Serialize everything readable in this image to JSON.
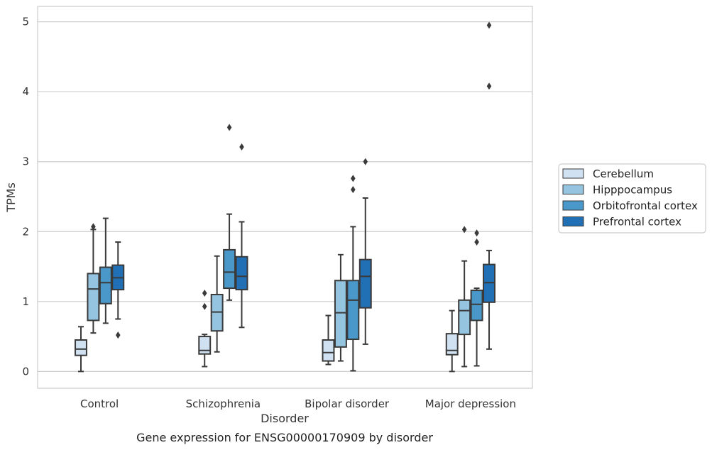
{
  "caption": "Gene expression for ENSG00000170909 by disorder",
  "chart_data": {
    "type": "boxplot",
    "xlabel": "Disorder",
    "ylabel": "TPMs",
    "ylim": [
      -0.24,
      5.22
    ],
    "yticks": [
      0,
      1,
      2,
      3,
      4,
      5
    ],
    "grid": "horizontal",
    "legend_position": "right",
    "categories": [
      "Control",
      "Schizophrenia",
      "Bipolar disorder",
      "Major depression"
    ],
    "series": [
      {
        "name": "Cerebellum",
        "color": "#d0e1f2",
        "boxes": [
          {
            "whislo": 0.0,
            "q1": 0.23,
            "med": 0.32,
            "q3": 0.45,
            "whishi": 0.64,
            "fliers": []
          },
          {
            "whislo": 0.07,
            "q1": 0.25,
            "med": 0.3,
            "q3": 0.5,
            "whishi": 0.53,
            "fliers": [
              0.93,
              1.12
            ]
          },
          {
            "whislo": 0.1,
            "q1": 0.15,
            "med": 0.27,
            "q3": 0.45,
            "whishi": 0.8,
            "fliers": []
          },
          {
            "whislo": 0.0,
            "q1": 0.24,
            "med": 0.3,
            "q3": 0.54,
            "whishi": 0.87,
            "fliers": []
          }
        ]
      },
      {
        "name": "Hipppocampus",
        "color": "#94c4df",
        "boxes": [
          {
            "whislo": 0.55,
            "q1": 0.73,
            "med": 1.18,
            "q3": 1.4,
            "whishi": 2.03,
            "fliers": [
              2.07
            ]
          },
          {
            "whislo": 0.28,
            "q1": 0.58,
            "med": 0.85,
            "q3": 1.1,
            "whishi": 1.65,
            "fliers": []
          },
          {
            "whislo": 0.15,
            "q1": 0.35,
            "med": 0.84,
            "q3": 1.3,
            "whishi": 1.67,
            "fliers": []
          },
          {
            "whislo": 0.07,
            "q1": 0.53,
            "med": 0.87,
            "q3": 1.02,
            "whishi": 1.58,
            "fliers": [
              2.03
            ]
          }
        ]
      },
      {
        "name": "Orbitofrontal cortex",
        "color": "#4a98c9",
        "boxes": [
          {
            "whislo": 0.69,
            "q1": 0.97,
            "med": 1.27,
            "q3": 1.49,
            "whishi": 2.19,
            "fliers": []
          },
          {
            "whislo": 1.02,
            "q1": 1.19,
            "med": 1.42,
            "q3": 1.74,
            "whishi": 2.25,
            "fliers": [
              3.49
            ]
          },
          {
            "whislo": 0.01,
            "q1": 0.46,
            "med": 1.02,
            "q3": 1.3,
            "whishi": 2.07,
            "fliers": [
              2.6,
              2.76
            ]
          },
          {
            "whislo": 0.08,
            "q1": 0.73,
            "med": 0.96,
            "q3": 1.16,
            "whishi": 1.19,
            "fliers": [
              1.85,
              1.98
            ]
          }
        ]
      },
      {
        "name": "Prefrontal cortex",
        "color": "#2170b5",
        "boxes": [
          {
            "whislo": 0.75,
            "q1": 1.17,
            "med": 1.34,
            "q3": 1.52,
            "whishi": 1.85,
            "fliers": [
              0.52
            ]
          },
          {
            "whislo": 0.63,
            "q1": 1.17,
            "med": 1.36,
            "q3": 1.64,
            "whishi": 2.14,
            "fliers": [
              3.21
            ]
          },
          {
            "whislo": 0.39,
            "q1": 0.91,
            "med": 1.36,
            "q3": 1.6,
            "whishi": 2.48,
            "fliers": [
              3.0
            ]
          },
          {
            "whislo": 0.32,
            "q1": 0.99,
            "med": 1.27,
            "q3": 1.53,
            "whishi": 1.73,
            "fliers": [
              4.08,
              4.95
            ]
          }
        ]
      }
    ]
  }
}
